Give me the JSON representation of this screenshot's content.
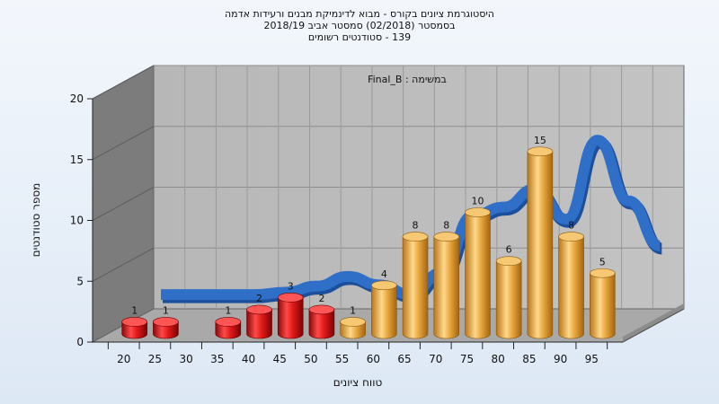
{
  "chart_data": {
    "type": "bar",
    "title": [
      "היסטוגרמת ציונים בקורס - מבוא לדינמיקת מבנים ורעידות אדמה",
      "בסמסטר  (02/2018)  סמסטר אביב 2018/19",
      "139 - סטודנטים רשומים"
    ],
    "subtitle": "במשימה : Final_B",
    "xlabel": "טווח ציונים",
    "ylabel": "מספר סטודנטים",
    "categories": [
      "20",
      "25",
      "30",
      "35",
      "40",
      "45",
      "50",
      "55",
      "60",
      "65",
      "70",
      "75",
      "80",
      "85",
      "90",
      "95"
    ],
    "values": [
      1,
      1,
      0,
      1,
      2,
      3,
      2,
      1,
      4,
      8,
      8,
      10,
      6,
      15,
      8,
      5
    ],
    "passing_threshold": 55,
    "ylim": [
      0,
      20
    ],
    "yticks": [
      0,
      5,
      10,
      15,
      20
    ],
    "grid": true,
    "legend": "none",
    "curve": {
      "name": "",
      "values": [
        0.8,
        0.8,
        0.8,
        0.8,
        1.0,
        1.5,
        2.3,
        1.6,
        0.8,
        2.6,
        7.3,
        8.0,
        9.5,
        7.0,
        13.5,
        8.5,
        4.8
      ]
    },
    "colors": {
      "fail_bar": "#d81a1a",
      "pass_bar": "#e3a23a",
      "curve": "#2f6fc8",
      "back_wall": "#b4b4b4",
      "side_wall": "#7c7c7c",
      "floor": "#a9a9a9"
    }
  }
}
